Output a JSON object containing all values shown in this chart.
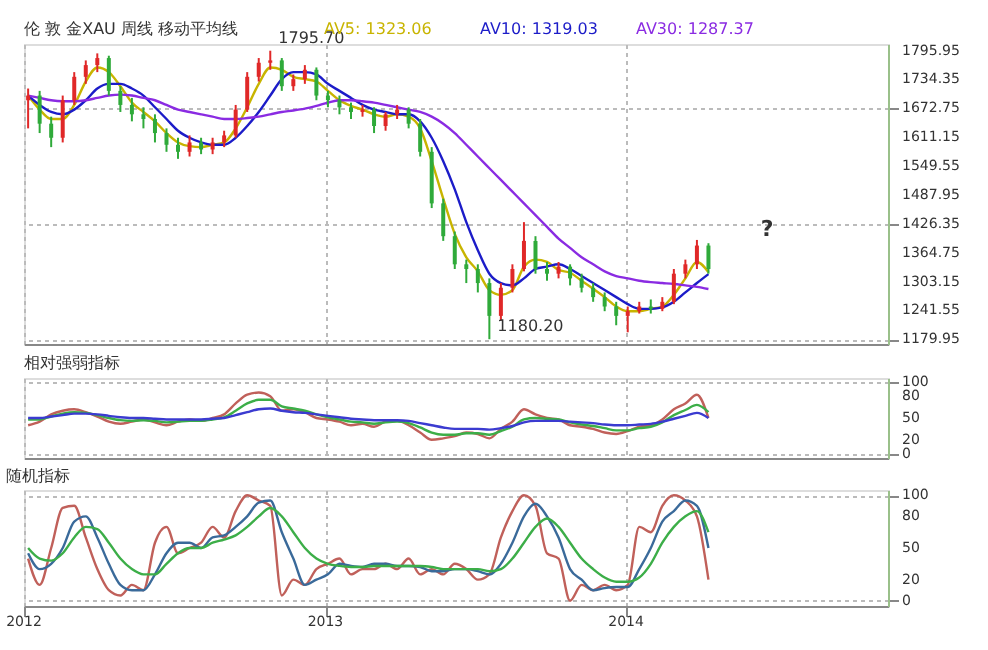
{
  "chart_data": [
    {
      "type": "candlestick",
      "title": "伦 敦 金XAU  周线  移动平均线",
      "legend": "top",
      "grid": true,
      "tick_labels": "y",
      "x": [
        "2012-01-06",
        "2012-01-20",
        "2012-02-03",
        "2012-02-17",
        "2012-03-02",
        "2012-03-16",
        "2012-03-30",
        "2012-04-13",
        "2012-04-27",
        "2012-05-11",
        "2012-05-25",
        "2012-06-08",
        "2012-06-22",
        "2012-07-06",
        "2012-07-20",
        "2012-08-03",
        "2012-08-17",
        "2012-08-31",
        "2012-09-14",
        "2012-09-28",
        "2012-10-12",
        "2012-10-26",
        "2012-11-09",
        "2012-11-23",
        "2012-12-07",
        "2012-12-21",
        "2013-01-04",
        "2013-01-18",
        "2013-02-01",
        "2013-02-15",
        "2013-03-01",
        "2013-03-15",
        "2013-03-29",
        "2013-04-12",
        "2013-04-26",
        "2013-05-10",
        "2013-05-24",
        "2013-06-07",
        "2013-06-21",
        "2013-07-05",
        "2013-07-19",
        "2013-08-02",
        "2013-08-16",
        "2013-08-30",
        "2013-09-13",
        "2013-09-27",
        "2013-10-11",
        "2013-10-25",
        "2013-11-08",
        "2013-11-22",
        "2013-12-06",
        "2013-12-20",
        "2014-01-03",
        "2014-01-17",
        "2014-01-31",
        "2014-02-14",
        "2014-02-28",
        "2014-03-14",
        "2014-03-28",
        "2014-04-11"
      ],
      "ohlc": [
        [
          1690,
          1715,
          1630,
          1700
        ],
        [
          1700,
          1710,
          1620,
          1640
        ],
        [
          1640,
          1655,
          1590,
          1610
        ],
        [
          1610,
          1700,
          1600,
          1690
        ],
        [
          1690,
          1750,
          1680,
          1740
        ],
        [
          1740,
          1775,
          1725,
          1765
        ],
        [
          1765,
          1790,
          1750,
          1780
        ],
        [
          1780,
          1785,
          1700,
          1710
        ],
        [
          1710,
          1720,
          1665,
          1680
        ],
        [
          1680,
          1695,
          1645,
          1660
        ],
        [
          1660,
          1675,
          1630,
          1650
        ],
        [
          1650,
          1660,
          1600,
          1620
        ],
        [
          1620,
          1630,
          1580,
          1595
        ],
        [
          1595,
          1610,
          1565,
          1580
        ],
        [
          1580,
          1615,
          1570,
          1600
        ],
        [
          1600,
          1610,
          1575,
          1585
        ],
        [
          1585,
          1610,
          1575,
          1600
        ],
        [
          1600,
          1625,
          1590,
          1615
        ],
        [
          1615,
          1680,
          1610,
          1670
        ],
        [
          1670,
          1750,
          1665,
          1740
        ],
        [
          1740,
          1780,
          1730,
          1770
        ],
        [
          1770,
          1795.7,
          1755,
          1775
        ],
        [
          1775,
          1780,
          1710,
          1720
        ],
        [
          1720,
          1745,
          1710,
          1735
        ],
        [
          1735,
          1765,
          1725,
          1755
        ],
        [
          1755,
          1760,
          1690,
          1700
        ],
        [
          1700,
          1710,
          1675,
          1690
        ],
        [
          1690,
          1700,
          1660,
          1675
        ],
        [
          1675,
          1685,
          1650,
          1665
        ],
        [
          1665,
          1680,
          1655,
          1670
        ],
        [
          1670,
          1675,
          1620,
          1635
        ],
        [
          1635,
          1665,
          1625,
          1660
        ],
        [
          1660,
          1680,
          1650,
          1670
        ],
        [
          1670,
          1675,
          1630,
          1640
        ],
        [
          1640,
          1650,
          1570,
          1580
        ],
        [
          1580,
          1590,
          1460,
          1470
        ],
        [
          1470,
          1480,
          1390,
          1400
        ],
        [
          1400,
          1410,
          1330,
          1340
        ],
        [
          1340,
          1350,
          1300,
          1330
        ],
        [
          1330,
          1340,
          1280,
          1300
        ],
        [
          1300,
          1310,
          1180.2,
          1230
        ],
        [
          1230,
          1300,
          1220,
          1290
        ],
        [
          1290,
          1340,
          1280,
          1330
        ],
        [
          1330,
          1430,
          1325,
          1390
        ],
        [
          1390,
          1400,
          1320,
          1330
        ],
        [
          1330,
          1345,
          1305,
          1320
        ],
        [
          1320,
          1345,
          1310,
          1335
        ],
        [
          1335,
          1340,
          1295,
          1310
        ],
        [
          1310,
          1320,
          1280,
          1290
        ],
        [
          1290,
          1300,
          1260,
          1270
        ],
        [
          1270,
          1280,
          1240,
          1250
        ],
        [
          1250,
          1260,
          1210,
          1230
        ],
        [
          1230,
          1250,
          1195,
          1240
        ],
        [
          1240,
          1260,
          1235,
          1250
        ],
        [
          1250,
          1265,
          1235,
          1245
        ],
        [
          1245,
          1270,
          1240,
          1260
        ],
        [
          1260,
          1330,
          1255,
          1320
        ],
        [
          1320,
          1350,
          1310,
          1340
        ],
        [
          1340,
          1392,
          1330,
          1380
        ],
        [
          1380,
          1385,
          1320,
          1330
        ]
      ],
      "series": [
        {
          "name": "AV5: 1323.06",
          "type": "line",
          "color": "#c8b400",
          "values": [
            1700,
            1670,
            1650,
            1650,
            1680,
            1730,
            1760,
            1750,
            1720,
            1685,
            1665,
            1645,
            1620,
            1600,
            1592,
            1590,
            1595,
            1600,
            1630,
            1675,
            1725,
            1760,
            1755,
            1740,
            1735,
            1730,
            1710,
            1690,
            1678,
            1670,
            1660,
            1655,
            1660,
            1655,
            1630,
            1560,
            1480,
            1405,
            1355,
            1325,
            1285,
            1275,
            1285,
            1335,
            1350,
            1345,
            1328,
            1322,
            1305,
            1288,
            1270,
            1250,
            1240,
            1240,
            1245,
            1250,
            1275,
            1310,
            1345,
            1323.06
          ]
        },
        {
          "name": "AV10: 1319.03",
          "type": "line",
          "color": "#1c1cc8",
          "values": [
            1700,
            1680,
            1665,
            1660,
            1670,
            1690,
            1715,
            1725,
            1725,
            1715,
            1700,
            1675,
            1650,
            1625,
            1610,
            1600,
            1595,
            1595,
            1610,
            1635,
            1665,
            1700,
            1735,
            1750,
            1750,
            1745,
            1725,
            1710,
            1695,
            1680,
            1670,
            1665,
            1660,
            1660,
            1645,
            1610,
            1560,
            1500,
            1430,
            1370,
            1320,
            1300,
            1295,
            1310,
            1330,
            1335,
            1340,
            1330,
            1315,
            1300,
            1285,
            1270,
            1255,
            1245,
            1245,
            1248,
            1260,
            1280,
            1300,
            1319.03
          ]
        },
        {
          "name": "AV30: 1287.37",
          "type": "line",
          "color": "#8a2be2",
          "values": [
            1700,
            1695,
            1690,
            1688,
            1688,
            1690,
            1695,
            1700,
            1702,
            1700,
            1695,
            1690,
            1680,
            1670,
            1665,
            1660,
            1655,
            1650,
            1650,
            1652,
            1655,
            1660,
            1665,
            1668,
            1672,
            1678,
            1685,
            1690,
            1690,
            1688,
            1685,
            1680,
            1675,
            1670,
            1665,
            1655,
            1640,
            1620,
            1595,
            1570,
            1545,
            1520,
            1495,
            1470,
            1445,
            1420,
            1395,
            1375,
            1355,
            1340,
            1325,
            1315,
            1310,
            1305,
            1302,
            1300,
            1298,
            1295,
            1292,
            1287.37
          ]
        }
      ],
      "xlim": [
        "2012-01-01",
        "2014-11-15"
      ],
      "xticks": [
        {
          "value": "2012-01-01",
          "label": null
        },
        {
          "value": "2013-01-01",
          "label": null
        },
        {
          "value": "2014-01-01",
          "label": null
        }
      ],
      "ylim": [
        1170,
        1810
      ],
      "yticks": [
        1179.95,
        1241.55,
        1303.15,
        1364.75,
        1426.35,
        1487.95,
        1549.55,
        1611.15,
        1672.75,
        1734.35,
        1795.95
      ],
      "annotations": [
        {
          "text": "1795.70",
          "x": "2012-10-26",
          "y": 1795.7
        },
        {
          "text": "1180.20",
          "x": "2013-07-19",
          "y": 1180.2
        },
        "?"
      ]
    },
    {
      "type": "line",
      "title": "相对强弱指标",
      "grid": true,
      "tick_labels": "y",
      "x": [
        "2012-01-06",
        "2012-01-20",
        "2012-02-03",
        "2012-02-17",
        "2012-03-02",
        "2012-03-16",
        "2012-03-30",
        "2012-04-13",
        "2012-04-27",
        "2012-05-11",
        "2012-05-25",
        "2012-06-08",
        "2012-06-22",
        "2012-07-06",
        "2012-07-20",
        "2012-08-03",
        "2012-08-17",
        "2012-08-31",
        "2012-09-14",
        "2012-09-28",
        "2012-10-12",
        "2012-10-26",
        "2012-11-09",
        "2012-11-23",
        "2012-12-07",
        "2012-12-21",
        "2013-01-04",
        "2013-01-18",
        "2013-02-01",
        "2013-02-15",
        "2013-03-01",
        "2013-03-15",
        "2013-03-29",
        "2013-04-12",
        "2013-04-26",
        "2013-05-10",
        "2013-05-24",
        "2013-06-07",
        "2013-06-21",
        "2013-07-05",
        "2013-07-19",
        "2013-08-02",
        "2013-08-16",
        "2013-08-30",
        "2013-09-13",
        "2013-09-27",
        "2013-10-11",
        "2013-10-25",
        "2013-11-08",
        "2013-11-22",
        "2013-12-06",
        "2013-12-20",
        "2014-01-03",
        "2014-01-17",
        "2014-01-31",
        "2014-02-14",
        "2014-02-28",
        "2014-03-14",
        "2014-03-28",
        "2014-04-11"
      ],
      "series": [
        {
          "color": "#c0605a",
          "values": [
            40,
            45,
            55,
            60,
            62,
            58,
            52,
            45,
            42,
            45,
            48,
            44,
            40,
            45,
            48,
            46,
            50,
            55,
            70,
            82,
            85,
            80,
            60,
            62,
            58,
            50,
            48,
            45,
            40,
            42,
            38,
            45,
            46,
            40,
            30,
            20,
            22,
            25,
            30,
            28,
            22,
            35,
            45,
            62,
            55,
            50,
            48,
            40,
            38,
            35,
            30,
            28,
            32,
            38,
            40,
            48,
            62,
            70,
            82,
            50
          ]
        },
        {
          "color": "#3cae48",
          "values": [
            48,
            48,
            52,
            56,
            58,
            57,
            54,
            50,
            47,
            46,
            47,
            46,
            44,
            45,
            46,
            46,
            48,
            51,
            60,
            70,
            75,
            75,
            66,
            63,
            60,
            55,
            51,
            48,
            45,
            44,
            42,
            44,
            45,
            43,
            37,
            30,
            27,
            27,
            29,
            29,
            27,
            32,
            38,
            48,
            50,
            49,
            48,
            44,
            41,
            39,
            36,
            33,
            33,
            36,
            38,
            44,
            54,
            61,
            68,
            58
          ]
        },
        {
          "color": "#3b3bd0",
          "values": [
            50,
            50,
            52,
            54,
            56,
            56,
            55,
            53,
            51,
            50,
            50,
            49,
            48,
            48,
            48,
            48,
            49,
            50,
            54,
            58,
            62,
            63,
            60,
            58,
            57,
            55,
            53,
            51,
            49,
            48,
            47,
            47,
            47,
            46,
            43,
            40,
            37,
            35,
            35,
            35,
            34,
            36,
            39,
            44,
            46,
            46,
            46,
            45,
            44,
            43,
            41,
            40,
            40,
            41,
            42,
            45,
            49,
            53,
            57,
            50
          ]
        }
      ],
      "xlim": [
        "2012-01-01",
        "2014-11-15"
      ],
      "xticks": [
        {
          "value": "2012-01-01",
          "label": null
        },
        {
          "value": "2013-01-01",
          "label": null
        },
        {
          "value": "2014-01-01",
          "label": null
        }
      ],
      "ylim": [
        -5,
        105
      ],
      "yticks": [
        0,
        20,
        50,
        80,
        100
      ]
    },
    {
      "type": "line",
      "title": "随机指标",
      "grid": true,
      "x": [
        "2012-01-06",
        "2012-01-20",
        "2012-02-03",
        "2012-02-17",
        "2012-03-02",
        "2012-03-16",
        "2012-03-30",
        "2012-04-13",
        "2012-04-27",
        "2012-05-11",
        "2012-05-25",
        "2012-06-08",
        "2012-06-22",
        "2012-07-06",
        "2012-07-20",
        "2012-08-03",
        "2012-08-17",
        "2012-08-31",
        "2012-09-14",
        "2012-09-28",
        "2012-10-12",
        "2012-10-26",
        "2012-11-09",
        "2012-11-23",
        "2012-12-07",
        "2012-12-21",
        "2013-01-04",
        "2013-01-18",
        "2013-02-01",
        "2013-02-15",
        "2013-03-01",
        "2013-03-15",
        "2013-03-29",
        "2013-04-12",
        "2013-04-26",
        "2013-05-10",
        "2013-05-24",
        "2013-06-07",
        "2013-06-21",
        "2013-07-05",
        "2013-07-19",
        "2013-08-02",
        "2013-08-16",
        "2013-08-30",
        "2013-09-13",
        "2013-09-27",
        "2013-10-11",
        "2013-10-25",
        "2013-11-08",
        "2013-11-22",
        "2013-12-06",
        "2013-12-20",
        "2014-01-03",
        "2014-01-17",
        "2014-01-31",
        "2014-02-14",
        "2014-02-28",
        "2014-03-14",
        "2014-03-28",
        "2014-04-11"
      ],
      "series": [
        {
          "color": "#c0605a",
          "values": [
            40,
            15,
            50,
            88,
            90,
            60,
            30,
            10,
            5,
            15,
            10,
            55,
            70,
            45,
            50,
            55,
            70,
            60,
            85,
            100,
            95,
            90,
            5,
            20,
            15,
            30,
            35,
            40,
            25,
            30,
            30,
            35,
            30,
            40,
            25,
            30,
            25,
            35,
            30,
            20,
            25,
            60,
            85,
            100,
            90,
            45,
            40,
            0,
            15,
            10,
            15,
            10,
            15,
            70,
            65,
            90,
            100,
            95,
            80,
            20
          ]
        },
        {
          "color": "#3a6a9a",
          "values": [
            45,
            30,
            35,
            50,
            75,
            80,
            60,
            35,
            15,
            10,
            10,
            25,
            45,
            55,
            55,
            50,
            60,
            62,
            70,
            80,
            93,
            95,
            65,
            40,
            15,
            20,
            25,
            35,
            33,
            32,
            35,
            35,
            33,
            33,
            32,
            28,
            28,
            30,
            30,
            28,
            25,
            35,
            55,
            80,
            92,
            80,
            60,
            30,
            20,
            10,
            12,
            13,
            13,
            30,
            50,
            75,
            85,
            95,
            90,
            50
          ]
        },
        {
          "color": "#3cae48",
          "values": [
            50,
            40,
            38,
            45,
            60,
            70,
            68,
            55,
            40,
            30,
            25,
            25,
            35,
            45,
            50,
            50,
            55,
            58,
            62,
            70,
            80,
            88,
            80,
            65,
            50,
            40,
            35,
            33,
            32,
            32,
            33,
            33,
            33,
            33,
            33,
            32,
            30,
            30,
            30,
            30,
            28,
            30,
            40,
            55,
            70,
            78,
            70,
            55,
            40,
            30,
            22,
            18,
            18,
            22,
            35,
            55,
            70,
            80,
            85,
            65
          ]
        }
      ],
      "xlim": [
        "2012-01-01",
        "2014-11-15"
      ],
      "xticks": [
        {
          "value": "2012-01-01",
          "label": "2012"
        },
        {
          "value": "2013-01-01",
          "label": "2013"
        },
        {
          "value": "2014-01-01",
          "label": "2014"
        }
      ],
      "ylim": [
        -5,
        105
      ],
      "yticks": [
        0,
        20,
        50,
        80,
        100
      ]
    }
  ]
}
